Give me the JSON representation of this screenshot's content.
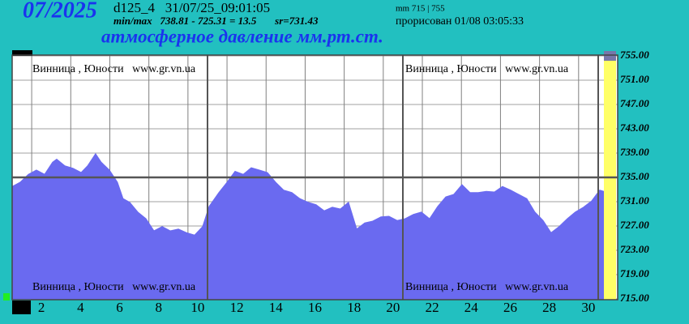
{
  "chart_data": {
    "type": "area",
    "title": "атмосферное давление мм.рт.ст.",
    "annotations": [
      "07/2025",
      "d125_4   31/07/25_09:01:05",
      "min/max   738.81 - 725.31 = 13.5       sr=731.43",
      "mm 715 | 755",
      "прорисован 01/08 03:05:33",
      "Винница , Юности   www.gr.vn.ua",
      "Винница , Юности   www.gr.vn.ua",
      "Винница , Юности   www.gr.vn.ua",
      "Винница , Юности   www.gr.vn.ua"
    ],
    "x": [
      1.0,
      1.41,
      1.83,
      2.24,
      2.66,
      3.07,
      3.28,
      3.7,
      4.11,
      4.53,
      4.86,
      5.27,
      5.56,
      5.98,
      6.39,
      6.68,
      7.02,
      7.43,
      7.85,
      8.26,
      8.68,
      9.09,
      9.51,
      9.92,
      10.34,
      10.75,
      11.08,
      11.58,
      12.0,
      12.41,
      12.83,
      13.24,
      13.66,
      14.07,
      14.49,
      14.9,
      15.32,
      15.73,
      16.15,
      16.56,
      16.98,
      17.39,
      17.8,
      18.22,
      18.64,
      19.05,
      19.46,
      19.88,
      20.29,
      20.71,
      21.12,
      21.54,
      21.95,
      22.37,
      22.78,
      23.2,
      23.61,
      24.03,
      24.44,
      24.86,
      25.27,
      25.69,
      26.1,
      26.52,
      26.93,
      27.35,
      27.76,
      28.18,
      28.59,
      29.0,
      29.42,
      29.83,
      30.25,
      30.66,
      31.08,
      31.29
    ],
    "series": [
      {
        "color": "#6a6af0",
        "values": [
          733.5,
          734.2,
          735.5,
          736.2,
          735.5,
          737.5,
          738.0,
          736.9,
          736.5,
          735.8,
          736.9,
          738.9,
          737.5,
          736.2,
          734.2,
          731.5,
          730.9,
          729.3,
          728.2,
          726.2,
          726.9,
          726.2,
          726.5,
          725.9,
          725.5,
          726.9,
          730.2,
          732.5,
          734.2,
          736.0,
          735.5,
          736.6,
          736.2,
          735.8,
          734.2,
          732.9,
          732.5,
          731.5,
          730.9,
          730.5,
          729.5,
          730.1,
          729.8,
          730.9,
          726.5,
          727.5,
          727.8,
          728.5,
          728.6,
          727.9,
          728.2,
          728.9,
          729.3,
          728.2,
          730.2,
          731.8,
          732.2,
          733.8,
          732.5,
          732.5,
          732.7,
          732.6,
          733.5,
          732.9,
          732.2,
          731.5,
          729.3,
          727.9,
          725.9,
          726.9,
          728.2,
          729.3,
          730.1,
          731.1,
          732.9,
          732.7
        ]
      }
    ],
    "xlim": [
      1,
      32
    ],
    "xticks": [
      2,
      4,
      6,
      8,
      10,
      12,
      14,
      16,
      18,
      20,
      22,
      24,
      26,
      28,
      30
    ],
    "ylim": [
      715,
      755
    ],
    "yticks": [
      {
        "value": 755,
        "label": "755.00"
      },
      {
        "value": 751,
        "label": "751.00"
      },
      {
        "value": 747,
        "label": "747.00"
      },
      {
        "value": 743,
        "label": "743.00"
      },
      {
        "value": 739,
        "label": "739.00"
      },
      {
        "value": 735,
        "label": "735.00"
      },
      {
        "value": 731,
        "label": "731.00"
      },
      {
        "value": 727,
        "label": "727.00"
      },
      {
        "value": 723,
        "label": "723.00"
      },
      {
        "value": 719,
        "label": "719.00"
      },
      {
        "value": 715,
        "label": "715.00"
      }
    ],
    "reference_line": 735,
    "grid": true
  }
}
